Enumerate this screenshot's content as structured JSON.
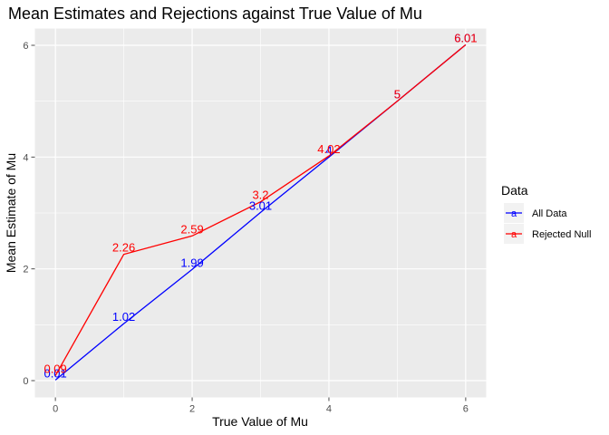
{
  "chart_data": {
    "type": "line",
    "title": "Mean Estimates and Rejections against True Value of Mu",
    "xlabel": "True Value of Mu",
    "ylabel": "Mean Estimate of Mu",
    "xlim": [
      -0.3,
      6.3
    ],
    "ylim": [
      -0.3,
      6.3
    ],
    "x_ticks": [
      0,
      2,
      4,
      6
    ],
    "y_ticks": [
      0,
      2,
      4,
      6
    ],
    "grid": true,
    "legend": {
      "title": "Data",
      "placement": "right",
      "key_glyph": "a"
    },
    "series": [
      {
        "name": "All Data",
        "color": "#0000ff",
        "x": [
          0,
          1,
          2,
          3,
          4,
          5,
          6
        ],
        "y": [
          0.01,
          1.02,
          1.99,
          3.01,
          4,
          5,
          6.01
        ],
        "labels": [
          "0.01",
          "1.02",
          "1.99",
          "3.01",
          "4",
          "5",
          "6.01"
        ]
      },
      {
        "name": "Rejected Null",
        "color": "#ff0000",
        "x": [
          0,
          1,
          2,
          3,
          4,
          5,
          6
        ],
        "y": [
          0.09,
          2.26,
          2.59,
          3.2,
          4.02,
          5,
          6.01
        ],
        "labels": [
          "0.09",
          "2.26",
          "2.59",
          "3.2",
          "4.02",
          "5",
          "6.01"
        ]
      }
    ]
  },
  "colors": {
    "panel": "#ebebeb",
    "grid": "#ffffff",
    "tick": "#4d4d4d"
  }
}
